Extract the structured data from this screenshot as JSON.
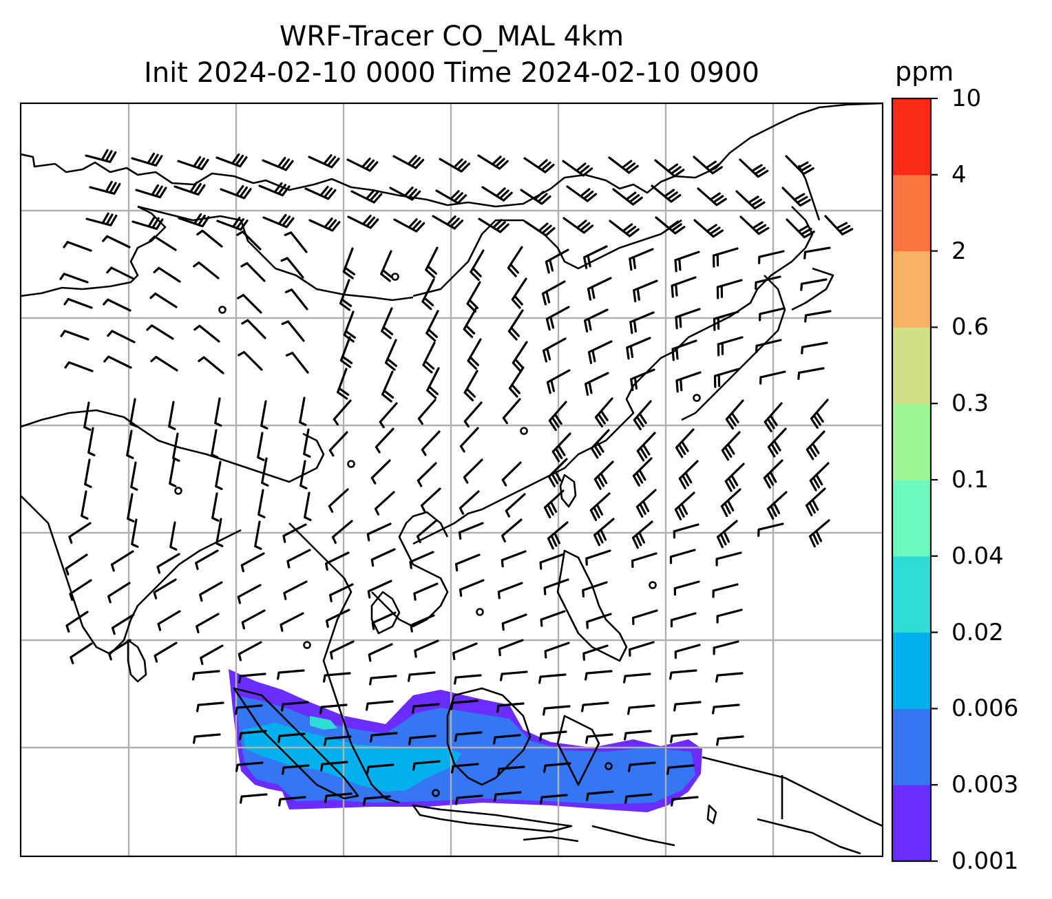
{
  "title": {
    "line1": "WRF-Tracer CO_MAL 4km",
    "line2": "Init 2024-02-10 0000 Time 2024-02-10 0900"
  },
  "colorbar": {
    "unit": "ppm",
    "levels": [
      "0.001",
      "0.003",
      "0.006",
      "0.02",
      "0.04",
      "0.1",
      "0.3",
      "0.6",
      "2",
      "4",
      "10"
    ],
    "colors": [
      "#6a2cff",
      "#3577f2",
      "#03b0ee",
      "#2fdcd6",
      "#6dfac0",
      "#9ef595",
      "#cfe085",
      "#fbb163",
      "#fb7440",
      "#fb2a17"
    ]
  },
  "map": {
    "gridlines": true,
    "coastline_color": "#000000",
    "grid_color": "#b0b0b0",
    "barb_color": "#000000"
  }
}
